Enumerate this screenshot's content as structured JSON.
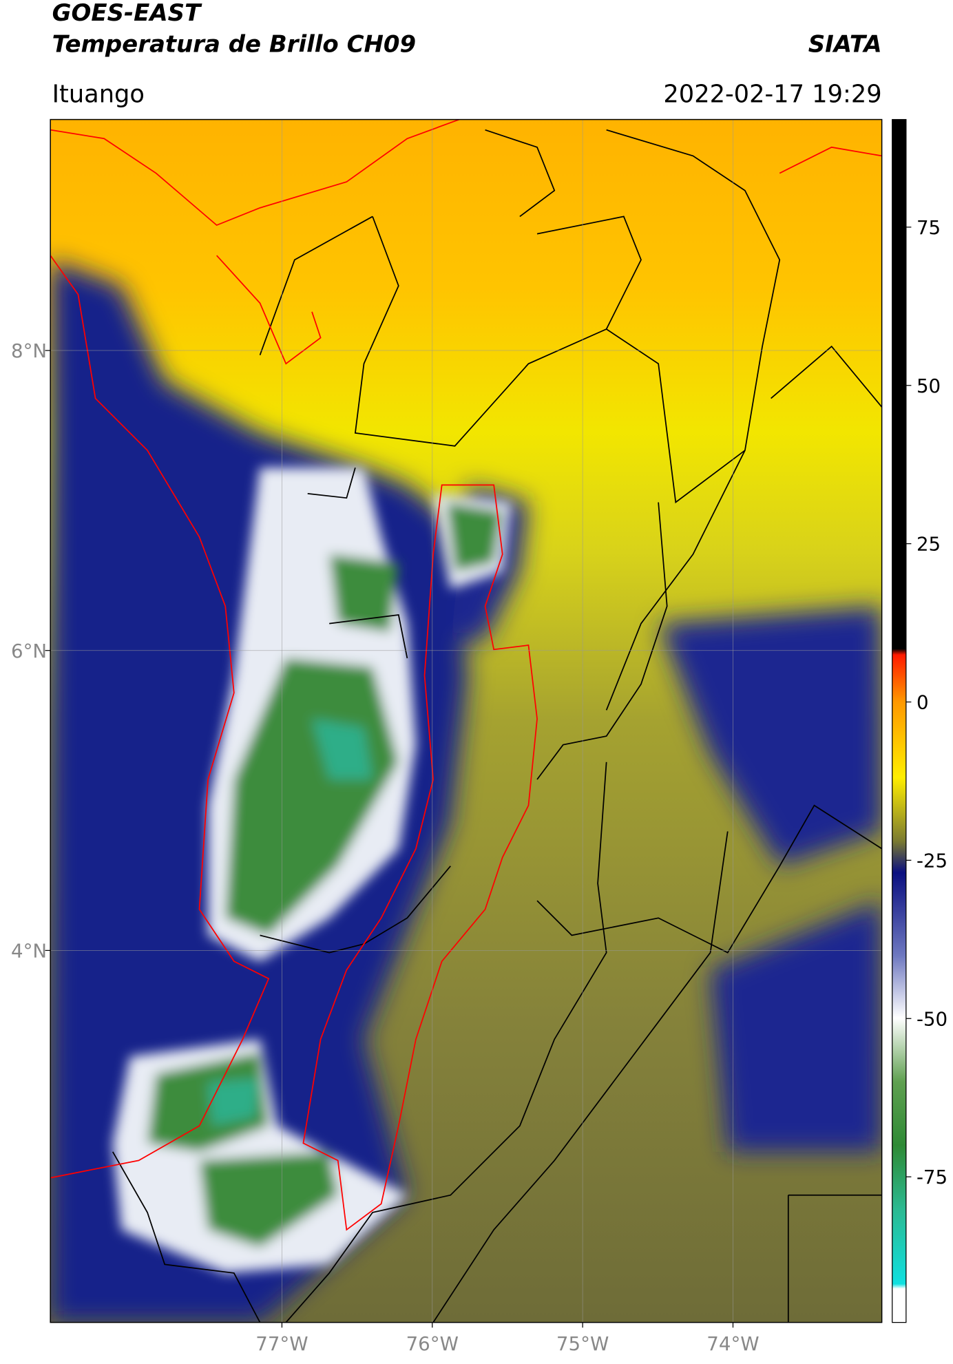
{
  "header": {
    "title": "GOES-EAST",
    "subtitle": "Temperatura de Brillo CH09",
    "agency": "SIATA",
    "location": "Ituango",
    "datetime": "2022-02-17 19:29"
  },
  "map": {
    "xlim": [
      -78.54,
      -73.01
    ],
    "ylim": [
      1.52,
      9.54
    ],
    "xticks": [
      {
        "value": -77,
        "label": "77°W"
      },
      {
        "value": -76,
        "label": "76°W"
      },
      {
        "value": -75,
        "label": "75°W"
      },
      {
        "value": -74,
        "label": "74°W"
      }
    ],
    "yticks": [
      {
        "value": 8,
        "label": "8°N"
      },
      {
        "value": 6,
        "label": "6°N"
      },
      {
        "value": 4,
        "label": "4°N"
      }
    ]
  },
  "colorbar": {
    "ylim": [
      -98,
      92
    ],
    "yticks": [
      -75,
      -50,
      -25,
      0,
      25,
      50,
      75
    ]
  }
}
